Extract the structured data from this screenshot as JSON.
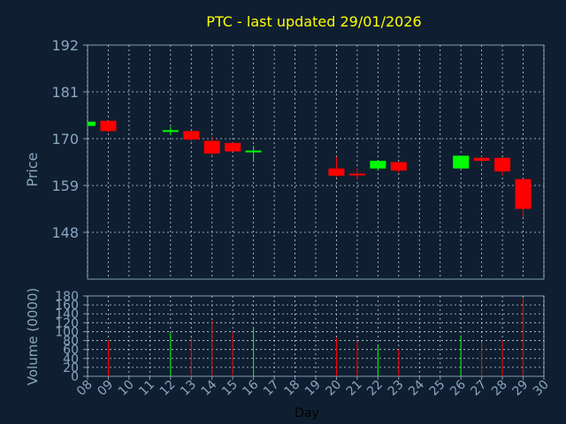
{
  "chart_data": {
    "type": "candlestick",
    "title": "PTC - last updated 29/01/2026",
    "xlabel": "Day",
    "price_panel": {
      "ylabel": "Price",
      "ylim": [
        137,
        192
      ],
      "yticks": [
        "192",
        "181",
        "170",
        "159",
        "148"
      ],
      "ytick_values": [
        192,
        181,
        170,
        159,
        148
      ]
    },
    "volume_panel": {
      "ylabel": "Volume (0000)",
      "ylim": [
        0,
        180
      ],
      "yticks": [
        "180",
        "160",
        "140",
        "120",
        "100",
        "80",
        "60",
        "40",
        "20",
        "0"
      ],
      "ytick_values": [
        180,
        160,
        140,
        120,
        100,
        80,
        60,
        40,
        20,
        0
      ]
    },
    "xticks": [
      "08",
      "09",
      "10",
      "11",
      "12",
      "13",
      "14",
      "15",
      "16",
      "17",
      "18",
      "19",
      "20",
      "21",
      "22",
      "23",
      "24",
      "25",
      "26",
      "27",
      "28",
      "29",
      "30"
    ],
    "grid": true,
    "candles": [
      {
        "day": 8,
        "open": 173.0,
        "close": 174.0,
        "high": 174.0,
        "low": 173.0,
        "volume": 0
      },
      {
        "day": 9,
        "open": 174.2,
        "close": 171.8,
        "high": 174.2,
        "low": 171.5,
        "volume": 80
      },
      {
        "day": 12,
        "open": 171.8,
        "close": 172.0,
        "high": 172.8,
        "low": 170.8,
        "volume": 97
      },
      {
        "day": 13,
        "open": 171.8,
        "close": 169.8,
        "high": 171.8,
        "low": 169.3,
        "volume": 86
      },
      {
        "day": 14,
        "open": 169.5,
        "close": 166.5,
        "high": 170.5,
        "low": 166.0,
        "volume": 125
      },
      {
        "day": 15,
        "open": 169.0,
        "close": 167.0,
        "high": 169.0,
        "low": 167.0,
        "volume": 100
      },
      {
        "day": 16,
        "open": 167.0,
        "close": 167.2,
        "high": 168.3,
        "low": 164.5,
        "volume": 108
      },
      {
        "day": 20,
        "open": 163.0,
        "close": 161.3,
        "high": 165.7,
        "low": 161.0,
        "volume": 86
      },
      {
        "day": 21,
        "open": 161.8,
        "close": 161.5,
        "high": 163.0,
        "low": 160.5,
        "volume": 78
      },
      {
        "day": 22,
        "open": 163.0,
        "close": 164.8,
        "high": 164.8,
        "low": 162.5,
        "volume": 70
      },
      {
        "day": 23,
        "open": 164.5,
        "close": 162.5,
        "high": 164.5,
        "low": 162.0,
        "volume": 60
      },
      {
        "day": 26,
        "open": 163.0,
        "close": 166.0,
        "high": 166.0,
        "low": 163.0,
        "volume": 92
      },
      {
        "day": 27,
        "open": 165.5,
        "close": 164.8,
        "high": 165.8,
        "low": 164.0,
        "volume": 78
      },
      {
        "day": 28,
        "open": 165.5,
        "close": 162.3,
        "high": 165.5,
        "low": 161.3,
        "volume": 80
      },
      {
        "day": 29,
        "open": 160.5,
        "close": 153.5,
        "high": 160.5,
        "low": 151.5,
        "volume": 175
      }
    ]
  },
  "colors": {
    "background": "#0f1f31",
    "axis": "#7f9db7",
    "grid": "#c8d3df",
    "title": "#ffff00",
    "up": "#00ff00",
    "down": "#ff0000",
    "text": "#8aa6c1",
    "xlabel": "#000000"
  }
}
